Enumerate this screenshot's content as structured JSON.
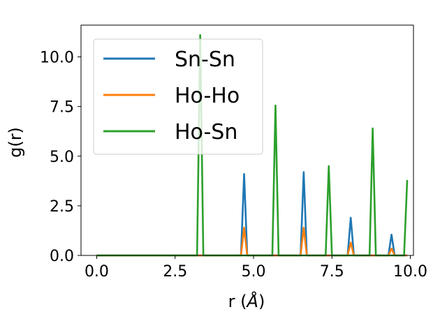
{
  "chart_data": {
    "type": "line",
    "xlabel_main": "r (",
    "xlabel_unit": "Å",
    "xlabel_close": ")",
    "ylabel": "g(r)",
    "xlim": [
      -0.5,
      10.1
    ],
    "ylim": [
      0,
      11.6
    ],
    "xticks": [
      0.0,
      2.5,
      5.0,
      7.5,
      10.0
    ],
    "xtick_labels": [
      "0.0",
      "2.5",
      "5.0",
      "7.5",
      "10.0"
    ],
    "yticks": [
      0.0,
      2.5,
      5.0,
      7.5,
      10.0
    ],
    "ytick_labels": [
      "0.0",
      "2.5",
      "5.0",
      "7.5",
      "10.0"
    ],
    "grid": false,
    "legend_position": "upper-left",
    "series": [
      {
        "name": "Sn-Sn",
        "color": "#1f77b4",
        "x": [
          0.0,
          4.6,
          4.7,
          4.8,
          6.5,
          6.6,
          6.7,
          8.0,
          8.1,
          8.2,
          9.3,
          9.4,
          9.5,
          9.9
        ],
        "y": [
          0.0,
          0.0,
          4.1,
          0.0,
          0.0,
          4.2,
          0.0,
          0.0,
          1.9,
          0.0,
          0.0,
          1.05,
          0.0,
          0.0
        ]
      },
      {
        "name": "Ho-Ho",
        "color": "#ff7f0e",
        "x": [
          0.0,
          4.6,
          4.7,
          4.8,
          6.5,
          6.6,
          6.7,
          8.0,
          8.1,
          8.2,
          9.3,
          9.4,
          9.5,
          9.9
        ],
        "y": [
          0.0,
          0.0,
          1.4,
          0.0,
          0.0,
          1.4,
          0.0,
          0.0,
          0.65,
          0.0,
          0.0,
          0.35,
          0.0,
          0.0
        ]
      },
      {
        "name": "Ho-Sn",
        "color": "#2ca02c",
        "x": [
          0.0,
          3.2,
          3.3,
          3.4,
          5.6,
          5.7,
          5.8,
          7.3,
          7.4,
          7.5,
          8.7,
          8.8,
          8.9,
          9.8,
          9.9
        ],
        "y": [
          0.0,
          0.0,
          11.1,
          0.0,
          0.0,
          7.55,
          0.0,
          0.0,
          4.5,
          0.0,
          0.0,
          6.4,
          0.0,
          0.0,
          3.8
        ]
      }
    ]
  }
}
